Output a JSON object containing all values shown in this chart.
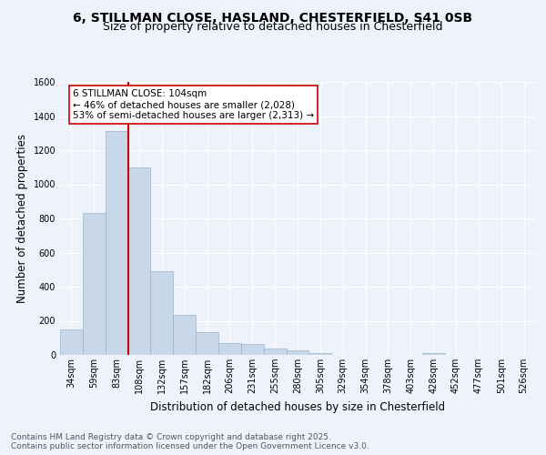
{
  "title_line1": "6, STILLMAN CLOSE, HASLAND, CHESTERFIELD, S41 0SB",
  "title_line2": "Size of property relative to detached houses in Chesterfield",
  "xlabel": "Distribution of detached houses by size in Chesterfield",
  "ylabel": "Number of detached properties",
  "categories": [
    "34sqm",
    "59sqm",
    "83sqm",
    "108sqm",
    "132sqm",
    "157sqm",
    "182sqm",
    "206sqm",
    "231sqm",
    "255sqm",
    "280sqm",
    "305sqm",
    "329sqm",
    "354sqm",
    "378sqm",
    "403sqm",
    "428sqm",
    "452sqm",
    "477sqm",
    "501sqm",
    "526sqm"
  ],
  "values": [
    150,
    830,
    1310,
    1100,
    490,
    235,
    135,
    70,
    65,
    38,
    25,
    12,
    0,
    0,
    0,
    0,
    13,
    0,
    0,
    0,
    0
  ],
  "bar_color": "#c8d8e8",
  "bar_edge_color": "#9ab4cc",
  "red_line_index": 3,
  "annotation_text": "6 STILLMAN CLOSE: 104sqm\n← 46% of detached houses are smaller (2,028)\n53% of semi-detached houses are larger (2,313) →",
  "annotation_box_facecolor": "#ffffff",
  "annotation_box_edgecolor": "#cc0000",
  "red_line_color": "#cc0000",
  "ylim": [
    0,
    1600
  ],
  "yticks": [
    0,
    200,
    400,
    600,
    800,
    1000,
    1200,
    1400,
    1600
  ],
  "footnote_line1": "Contains HM Land Registry data © Crown copyright and database right 2025.",
  "footnote_line2": "Contains public sector information licensed under the Open Government Licence v3.0.",
  "bg_color": "#eef2fb",
  "grid_color": "#ffffff",
  "title_fontsize": 10,
  "subtitle_fontsize": 9,
  "axis_label_fontsize": 8.5,
  "tick_fontsize": 7,
  "annotation_fontsize": 7.5,
  "footnote_fontsize": 6.5
}
